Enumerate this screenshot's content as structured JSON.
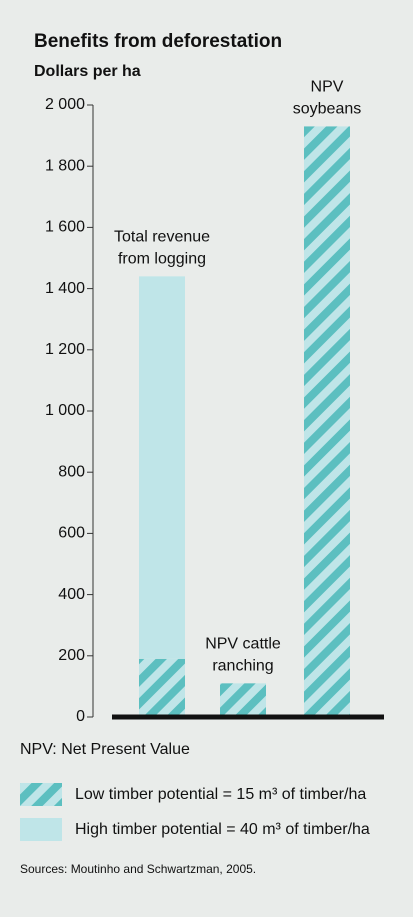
{
  "chart_data": {
    "type": "bar",
    "stacked": true,
    "title": "Benefits from deforestation",
    "subtitle": "Dollars per ha",
    "categories": [
      [
        "Total revenue",
        "from logging"
      ],
      [
        "NPV cattle",
        "ranching"
      ],
      [
        "NPV",
        "soybeans"
      ]
    ],
    "series": [
      {
        "name": "Low timber potential = 15 m³ of timber/ha",
        "color": "#5cbfc0",
        "hatch": true,
        "values": [
          190,
          110,
          1930
        ]
      },
      {
        "name": "High timber potential = 40 m³ of timber/ha",
        "color": "#bfe5e8",
        "values": [
          1250,
          null,
          null
        ]
      }
    ],
    "ylim": [
      0,
      2000
    ],
    "yticks": [
      0,
      200,
      400,
      600,
      800,
      {
        "value": 1000,
        "label": "1 000"
      },
      {
        "value": 1200,
        "label": "1 200"
      },
      {
        "value": 1400,
        "label": "1 400"
      },
      {
        "value": 1600,
        "label": "1 600"
      },
      {
        "value": 1800,
        "label": "1 800"
      },
      {
        "value": 2000,
        "label": "2 000"
      }
    ],
    "note": "NPV: Net Present Value",
    "source": "Sources: Moutinho and Schwartzman, 2005."
  }
}
